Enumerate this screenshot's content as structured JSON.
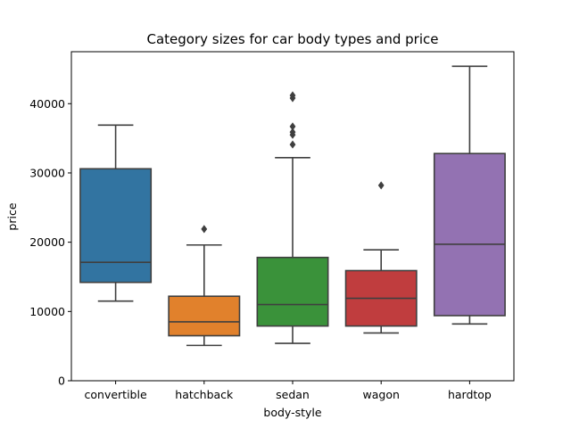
{
  "chart_data": {
    "type": "box",
    "title": "Category sizes for car body types and price",
    "xlabel": "body-style",
    "ylabel": "price",
    "ylim": [
      0,
      47500
    ],
    "yticks": [
      0,
      10000,
      20000,
      30000,
      40000
    ],
    "grid": false,
    "categories": [
      "convertible",
      "hatchback",
      "sedan",
      "wagon",
      "hardtop"
    ],
    "boxes": [
      {
        "category": "convertible",
        "color": "#3274a1",
        "whisker_low": 11500,
        "q1": 14200,
        "median": 17100,
        "q3": 30600,
        "whisker_high": 36900,
        "outliers": []
      },
      {
        "category": "hatchback",
        "color": "#e1812c",
        "whisker_low": 5100,
        "q1": 6500,
        "median": 8500,
        "q3": 12200,
        "whisker_high": 19600,
        "outliers": [
          21900
        ]
      },
      {
        "category": "sedan",
        "color": "#3a923a",
        "whisker_low": 5400,
        "q1": 7900,
        "median": 11000,
        "q3": 17800,
        "whisker_high": 32200,
        "outliers": [
          34100,
          35500,
          35900,
          36700,
          40800,
          41200
        ]
      },
      {
        "category": "wagon",
        "color": "#c03d3e",
        "whisker_low": 6900,
        "q1": 7900,
        "median": 11900,
        "q3": 15900,
        "whisker_high": 18900,
        "outliers": [
          28200
        ]
      },
      {
        "category": "hardtop",
        "color": "#9372b2",
        "whisker_low": 8200,
        "q1": 9400,
        "median": 19700,
        "q3": 32800,
        "whisker_high": 45400,
        "outliers": []
      }
    ]
  }
}
